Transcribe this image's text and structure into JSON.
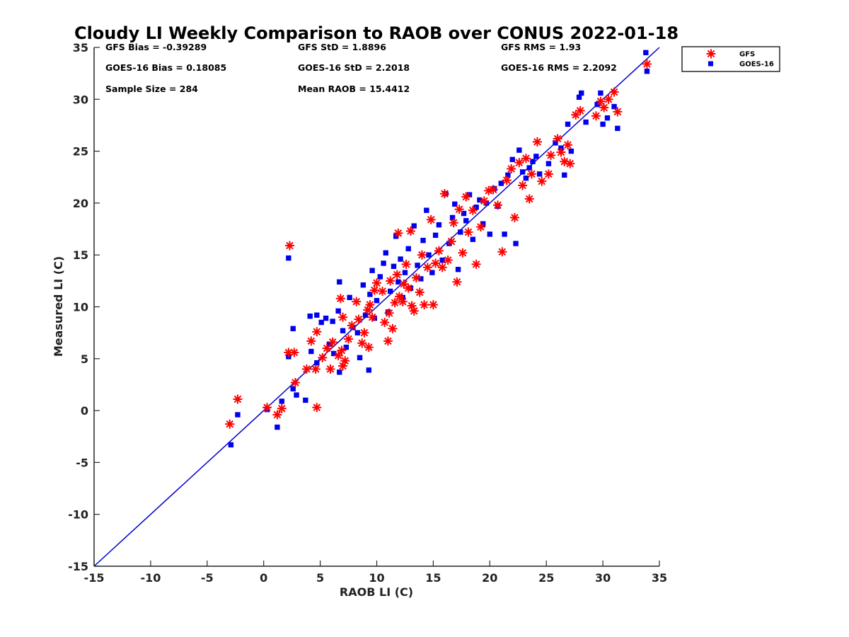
{
  "chart_data": {
    "type": "scatter",
    "title": "Cloudy LI Weekly Comparison to RAOB over CONUS 2022-01-18",
    "xlabel": "RAOB LI (C)",
    "ylabel": "Measured LI (C)",
    "xlim": [
      -15,
      35
    ],
    "ylim": [
      -15,
      35
    ],
    "xticks": [
      -15,
      -10,
      -5,
      0,
      5,
      10,
      15,
      20,
      25,
      30,
      35
    ],
    "yticks": [
      -15,
      -10,
      -5,
      0,
      5,
      10,
      15,
      20,
      25,
      30,
      35
    ],
    "grid": false,
    "legend_position": "top-right, outside plot",
    "stats": [
      {
        "text": "GFS Bias = -0.39289"
      },
      {
        "text": "GFS StD = 1.8896"
      },
      {
        "text": "GFS RMS = 1.93"
      },
      {
        "text": "GOES-16 Bias = 0.18085"
      },
      {
        "text": "GOES-16 StD = 2.2018"
      },
      {
        "text": "GOES-16 RMS = 2.2092"
      },
      {
        "text": "Sample Size = 284"
      },
      {
        "text": "Mean RAOB = 15.4412"
      }
    ],
    "reference_line": {
      "x": [
        -15,
        35
      ],
      "y": [
        -15,
        35
      ],
      "color": "#0000cc"
    },
    "series": [
      {
        "name": "GFS",
        "marker": "asterisk",
        "color": "#ff0000",
        "points": [
          [
            -3,
            -1.3
          ],
          [
            -2.3,
            1.1
          ],
          [
            0.3,
            0.3
          ],
          [
            1.2,
            -0.4
          ],
          [
            1.6,
            0.2
          ],
          [
            2.3,
            15.9
          ],
          [
            2.2,
            5.6
          ],
          [
            2.7,
            5.6
          ],
          [
            2.8,
            2.7
          ],
          [
            3.8,
            4.0
          ],
          [
            4.2,
            6.7
          ],
          [
            4.7,
            0.3
          ],
          [
            4.6,
            4.0
          ],
          [
            4.7,
            7.6
          ],
          [
            5.2,
            5.1
          ],
          [
            5.6,
            6.0
          ],
          [
            5.9,
            4.0
          ],
          [
            6.1,
            6.6
          ],
          [
            6.6,
            5.3
          ],
          [
            6.8,
            10.8
          ],
          [
            6.9,
            5.8
          ],
          [
            7.0,
            9.0
          ],
          [
            7.2,
            4.8
          ],
          [
            7.0,
            4.3
          ],
          [
            7.5,
            6.9
          ],
          [
            7.8,
            8.2
          ],
          [
            8.2,
            10.5
          ],
          [
            8.4,
            8.8
          ],
          [
            8.7,
            6.5
          ],
          [
            8.9,
            7.5
          ],
          [
            9.3,
            6.1
          ],
          [
            9.2,
            9.7
          ],
          [
            9.6,
            9.0
          ],
          [
            9.4,
            10.2
          ],
          [
            9.8,
            11.6
          ],
          [
            10.0,
            12.3
          ],
          [
            10.5,
            11.5
          ],
          [
            10.7,
            8.5
          ],
          [
            11.0,
            6.7
          ],
          [
            11.1,
            9.4
          ],
          [
            11.2,
            12.5
          ],
          [
            11.4,
            7.9
          ],
          [
            11.6,
            10.4
          ],
          [
            11.8,
            13.1
          ],
          [
            11.9,
            17.1
          ],
          [
            12.0,
            11.0
          ],
          [
            12.3,
            10.5
          ],
          [
            12.4,
            12.2
          ],
          [
            12.6,
            14.1
          ],
          [
            12.8,
            11.8
          ],
          [
            13.0,
            17.3
          ],
          [
            13.1,
            10.1
          ],
          [
            13.3,
            9.6
          ],
          [
            13.5,
            12.8
          ],
          [
            13.8,
            11.4
          ],
          [
            14.0,
            15.0
          ],
          [
            14.2,
            10.2
          ],
          [
            14.5,
            13.8
          ],
          [
            14.8,
            18.4
          ],
          [
            15.0,
            10.2
          ],
          [
            15.2,
            14.2
          ],
          [
            15.5,
            15.4
          ],
          [
            15.8,
            13.8
          ],
          [
            16.0,
            20.9
          ],
          [
            16.3,
            14.5
          ],
          [
            16.6,
            16.3
          ],
          [
            16.8,
            18.1
          ],
          [
            17.1,
            12.4
          ],
          [
            17.3,
            19.4
          ],
          [
            17.6,
            15.2
          ],
          [
            17.9,
            20.6
          ],
          [
            18.1,
            17.2
          ],
          [
            18.5,
            19.3
          ],
          [
            18.8,
            14.1
          ],
          [
            19.2,
            17.7
          ],
          [
            19.5,
            20.2
          ],
          [
            19.9,
            21.2
          ],
          [
            20.3,
            21.3
          ],
          [
            20.7,
            19.8
          ],
          [
            21.1,
            15.3
          ],
          [
            21.5,
            22.2
          ],
          [
            21.9,
            23.3
          ],
          [
            22.2,
            18.6
          ],
          [
            22.6,
            23.9
          ],
          [
            22.9,
            21.7
          ],
          [
            23.2,
            24.3
          ],
          [
            23.5,
            20.4
          ],
          [
            23.7,
            22.8
          ],
          [
            24.2,
            25.9
          ],
          [
            24.6,
            22.1
          ],
          [
            25.2,
            22.8
          ],
          [
            25.4,
            24.6
          ],
          [
            26.0,
            26.2
          ],
          [
            26.3,
            24.9
          ],
          [
            26.6,
            24.0
          ],
          [
            26.9,
            25.6
          ],
          [
            27.1,
            23.8
          ],
          [
            27.6,
            28.5
          ],
          [
            28.0,
            28.9
          ],
          [
            29.4,
            28.4
          ],
          [
            29.8,
            29.8
          ],
          [
            30.1,
            29.2
          ],
          [
            30.5,
            30.0
          ],
          [
            31.0,
            30.7
          ],
          [
            31.3,
            28.8
          ],
          [
            33.9,
            33.4
          ]
        ]
      },
      {
        "name": "GOES-16",
        "marker": "square",
        "color": "#0000ee",
        "points": [
          [
            -2.9,
            -3.3
          ],
          [
            -2.3,
            -0.4
          ],
          [
            0.3,
            0.1
          ],
          [
            1.2,
            -1.6
          ],
          [
            1.6,
            0.9
          ],
          [
            2.2,
            14.7
          ],
          [
            2.2,
            5.2
          ],
          [
            2.6,
            7.9
          ],
          [
            2.6,
            2.1
          ],
          [
            2.9,
            1.5
          ],
          [
            3.7,
            1.0
          ],
          [
            4.1,
            9.1
          ],
          [
            4.2,
            5.7
          ],
          [
            4.7,
            9.2
          ],
          [
            4.7,
            4.6
          ],
          [
            5.1,
            8.5
          ],
          [
            5.5,
            8.9
          ],
          [
            5.8,
            6.4
          ],
          [
            6.1,
            8.6
          ],
          [
            6.2,
            5.5
          ],
          [
            6.6,
            9.6
          ],
          [
            6.7,
            3.7
          ],
          [
            6.7,
            12.4
          ],
          [
            7.0,
            7.7
          ],
          [
            7.3,
            6.1
          ],
          [
            7.6,
            10.9
          ],
          [
            7.9,
            8.0
          ],
          [
            8.3,
            7.5
          ],
          [
            8.5,
            5.1
          ],
          [
            8.8,
            12.1
          ],
          [
            9.0,
            9.2
          ],
          [
            9.3,
            3.9
          ],
          [
            9.4,
            11.2
          ],
          [
            9.6,
            13.5
          ],
          [
            9.8,
            8.9
          ],
          [
            10.0,
            10.6
          ],
          [
            10.3,
            12.9
          ],
          [
            10.6,
            14.2
          ],
          [
            10.8,
            15.2
          ],
          [
            11.0,
            9.5
          ],
          [
            11.2,
            11.5
          ],
          [
            11.5,
            13.9
          ],
          [
            11.7,
            16.8
          ],
          [
            11.9,
            12.4
          ],
          [
            12.1,
            14.6
          ],
          [
            12.3,
            10.9
          ],
          [
            12.5,
            13.3
          ],
          [
            12.8,
            15.6
          ],
          [
            13.0,
            11.8
          ],
          [
            13.3,
            17.8
          ],
          [
            13.6,
            14.0
          ],
          [
            13.9,
            12.7
          ],
          [
            14.1,
            16.4
          ],
          [
            14.4,
            19.3
          ],
          [
            14.6,
            15.0
          ],
          [
            14.9,
            13.3
          ],
          [
            15.2,
            16.9
          ],
          [
            15.5,
            17.9
          ],
          [
            15.8,
            14.5
          ],
          [
            16.1,
            20.9
          ],
          [
            16.4,
            16.1
          ],
          [
            16.7,
            18.6
          ],
          [
            16.9,
            19.9
          ],
          [
            17.2,
            13.6
          ],
          [
            17.4,
            17.2
          ],
          [
            17.7,
            19.0
          ],
          [
            17.9,
            18.3
          ],
          [
            18.2,
            20.8
          ],
          [
            18.5,
            16.5
          ],
          [
            18.8,
            19.6
          ],
          [
            19.1,
            20.3
          ],
          [
            19.4,
            18.0
          ],
          [
            19.7,
            20.0
          ],
          [
            20.0,
            17.0
          ],
          [
            20.4,
            21.4
          ],
          [
            20.7,
            19.7
          ],
          [
            21.0,
            21.9
          ],
          [
            21.3,
            17.0
          ],
          [
            21.6,
            22.7
          ],
          [
            22.0,
            24.2
          ],
          [
            22.3,
            16.1
          ],
          [
            22.6,
            25.1
          ],
          [
            22.9,
            23.0
          ],
          [
            23.2,
            22.4
          ],
          [
            23.5,
            23.4
          ],
          [
            23.8,
            24.0
          ],
          [
            24.1,
            24.5
          ],
          [
            24.4,
            22.8
          ],
          [
            25.2,
            23.8
          ],
          [
            25.8,
            25.8
          ],
          [
            26.3,
            25.3
          ],
          [
            26.6,
            22.7
          ],
          [
            26.9,
            27.6
          ],
          [
            27.2,
            25.0
          ],
          [
            27.9,
            30.2
          ],
          [
            28.1,
            30.6
          ],
          [
            28.5,
            27.8
          ],
          [
            29.5,
            29.5
          ],
          [
            29.8,
            30.6
          ],
          [
            30.0,
            27.6
          ],
          [
            30.4,
            28.2
          ],
          [
            31.0,
            29.3
          ],
          [
            31.3,
            27.2
          ],
          [
            33.8,
            34.5
          ],
          [
            33.9,
            32.7
          ]
        ]
      }
    ]
  }
}
